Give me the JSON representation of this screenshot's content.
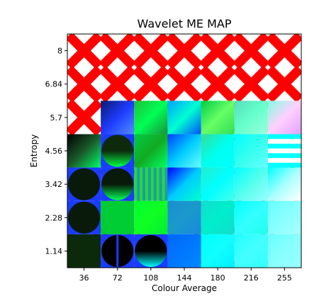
{
  "chart_data": {
    "type": "heatmap",
    "title": "Wavelet ME MAP",
    "xlabel": "Colour Average",
    "ylabel": "Entropy",
    "x_ticks": [
      "36",
      "72",
      "108",
      "144",
      "180",
      "216",
      "255"
    ],
    "y_ticks": [
      "8",
      "6.84",
      "5.7",
      "4.56",
      "3.42",
      "2.28",
      "1.14"
    ],
    "grid": false,
    "legend": "none",
    "background_pattern": {
      "description": "red X tiles on white",
      "color": "#ff0000",
      "background": "#ffffff"
    },
    "cells": [
      {
        "row": 2,
        "col": 1,
        "kind": "grad",
        "stops": [
          "#0a1a6a",
          "#1e3cff",
          "#4f8fff"
        ]
      },
      {
        "row": 2,
        "col": 2,
        "kind": "grad",
        "stops": [
          "#1fbf3a",
          "#00ff55",
          "#1a8f3a"
        ]
      },
      {
        "row": 2,
        "col": 3,
        "kind": "grad",
        "stops": [
          "#00a0ff",
          "#00ffd0",
          "#0050ff"
        ]
      },
      {
        "row": 2,
        "col": 4,
        "kind": "grad",
        "stops": [
          "#00cc44",
          "#66ff66",
          "#33dd55"
        ]
      },
      {
        "row": 2,
        "col": 5,
        "kind": "grad",
        "stops": [
          "#55ddbb",
          "#66ffcc",
          "#99ffdd"
        ]
      },
      {
        "row": 2,
        "col": 6,
        "kind": "grad",
        "stops": [
          "#80ffe0",
          "#ffd0ff",
          "#e0a0ff"
        ]
      },
      {
        "row": 3,
        "col": 0,
        "kind": "grad",
        "stops": [
          "#000000",
          "#1a5a2a",
          "#00ff66"
        ]
      },
      {
        "row": 3,
        "col": 1,
        "kind": "circle",
        "bg": "#1a3cff",
        "fg": "#0d2a0d",
        "fg2": "#00ff44"
      },
      {
        "row": 3,
        "col": 2,
        "kind": "grad",
        "stops": [
          "#00cc44",
          "#11aa22",
          "#00ff66"
        ]
      },
      {
        "row": 3,
        "col": 3,
        "kind": "grad",
        "stops": [
          "#0040ff",
          "#00ccff",
          "#66ffff"
        ]
      },
      {
        "row": 3,
        "col": 4,
        "kind": "grad",
        "stops": [
          "#33dd99",
          "#00ffee",
          "#00ffff"
        ]
      },
      {
        "row": 3,
        "col": 5,
        "kind": "grad",
        "stops": [
          "#00ffff",
          "#33ffee",
          "#66ffff"
        ]
      },
      {
        "row": 3,
        "col": 6,
        "kind": "stripes",
        "c1": "#00ffff",
        "c2": "#ffffff"
      },
      {
        "row": 4,
        "col": 0,
        "kind": "circle",
        "bg": "#1a3cff",
        "fg": "#0a1a0a",
        "fg2": "#0a1a0a"
      },
      {
        "row": 4,
        "col": 1,
        "kind": "circle",
        "bg": "#1a3cff",
        "fg": "#0a1a0a",
        "fg2": "#00ff55"
      },
      {
        "row": 4,
        "col": 2,
        "kind": "vstripes",
        "c1": "#22dd33",
        "c2": "#2299aa"
      },
      {
        "row": 4,
        "col": 3,
        "kind": "grad",
        "stops": [
          "#0000ff",
          "#00ccff",
          "#00ffcc"
        ]
      },
      {
        "row": 4,
        "col": 4,
        "kind": "grad",
        "stops": [
          "#22eecc",
          "#00ffff",
          "#44ffee"
        ]
      },
      {
        "row": 4,
        "col": 5,
        "kind": "grad",
        "stops": [
          "#00ffff",
          "#55ffee",
          "#99ffff"
        ]
      },
      {
        "row": 4,
        "col": 6,
        "kind": "grad",
        "stops": [
          "#00ffff",
          "#aaffff",
          "#ffffff"
        ]
      },
      {
        "row": 5,
        "col": 0,
        "kind": "circle",
        "bg": "#1a3cff",
        "fg": "#0a1a0a",
        "fg2": "#0a1a0a"
      },
      {
        "row": 5,
        "col": 1,
        "kind": "grad",
        "stops": [
          "#00cc33",
          "#00cc33",
          "#00cc33"
        ]
      },
      {
        "row": 5,
        "col": 2,
        "kind": "grad",
        "stops": [
          "#00ff33",
          "#11ff22",
          "#00ee33"
        ]
      },
      {
        "row": 5,
        "col": 3,
        "kind": "grad",
        "stops": [
          "#1a8fd0",
          "#1a99cc",
          "#1a88dd"
        ]
      },
      {
        "row": 5,
        "col": 4,
        "kind": "grad",
        "stops": [
          "#11ddcc",
          "#00eecc",
          "#11ddcc"
        ]
      },
      {
        "row": 5,
        "col": 5,
        "kind": "grad",
        "stops": [
          "#00ffff",
          "#33ffff",
          "#22ffee"
        ]
      },
      {
        "row": 5,
        "col": 6,
        "kind": "grad",
        "stops": [
          "#66ffff",
          "#88ffff",
          "#aaffff"
        ]
      },
      {
        "row": 6,
        "col": 0,
        "kind": "grad",
        "stops": [
          "#0a2a0a",
          "#0a2a0a",
          "#0a2a0a"
        ]
      },
      {
        "row": 6,
        "col": 1,
        "kind": "split",
        "bg": "#1a3cff",
        "fg": "#000000"
      },
      {
        "row": 6,
        "col": 2,
        "kind": "circle",
        "bg": "#1a3cff",
        "fg": "#000000",
        "fg2": "#00ffff"
      },
      {
        "row": 6,
        "col": 3,
        "kind": "grad",
        "stops": [
          "#0066ff",
          "#0077ff",
          "#0088ff"
        ]
      },
      {
        "row": 6,
        "col": 4,
        "kind": "grad",
        "stops": [
          "#00ffff",
          "#11ffff",
          "#00eeff"
        ]
      },
      {
        "row": 6,
        "col": 5,
        "kind": "grad",
        "stops": [
          "#22ffff",
          "#44ffff",
          "#33ffff"
        ]
      },
      {
        "row": 6,
        "col": 6,
        "kind": "grad",
        "stops": [
          "#66ffff",
          "#88ffff",
          "#99ffff"
        ]
      }
    ]
  }
}
